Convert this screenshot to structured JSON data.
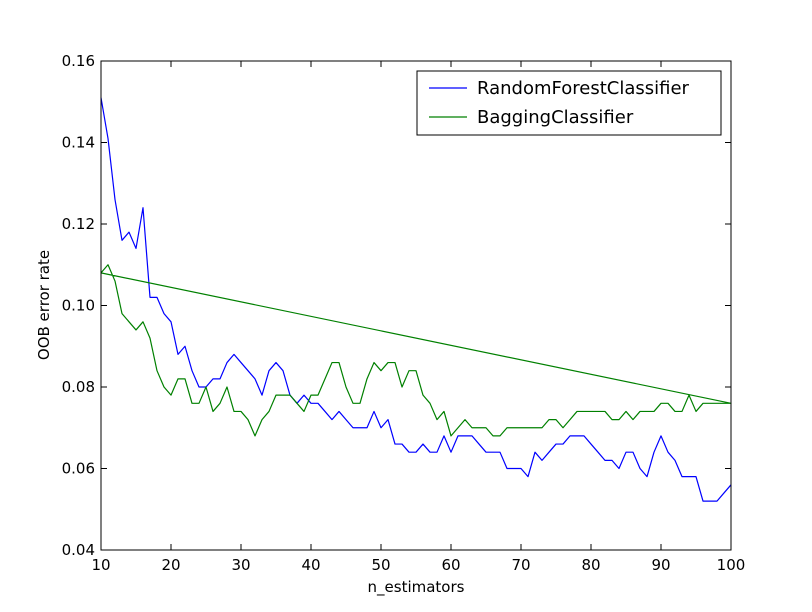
{
  "chart_data": {
    "type": "line",
    "title": "",
    "xlabel": "n_estimators",
    "ylabel": "OOB error rate",
    "xlim": [
      10,
      100
    ],
    "ylim": [
      0.04,
      0.16
    ],
    "xticks": [
      10,
      20,
      30,
      40,
      50,
      60,
      70,
      80,
      90,
      100
    ],
    "yticks": [
      0.04,
      0.06,
      0.08,
      0.1,
      0.12,
      0.14,
      0.16
    ],
    "xtick_labels": [
      "10",
      "20",
      "30",
      "40",
      "50",
      "60",
      "70",
      "80",
      "90",
      "100"
    ],
    "ytick_labels": [
      "0.04",
      "0.06",
      "0.08",
      "0.10",
      "0.12",
      "0.14",
      "0.16"
    ],
    "grid": false,
    "legend_position": "top-right",
    "series": [
      {
        "name": "RandomForestClassifier",
        "color": "#0000ff",
        "x": [
          10,
          11,
          12,
          13,
          14,
          15,
          16,
          17,
          18,
          19,
          20,
          21,
          22,
          23,
          24,
          25,
          26,
          27,
          28,
          29,
          30,
          31,
          32,
          33,
          34,
          35,
          36,
          37,
          38,
          39,
          40,
          41,
          42,
          43,
          44,
          45,
          46,
          47,
          48,
          49,
          50,
          51,
          52,
          53,
          54,
          55,
          56,
          57,
          58,
          59,
          60,
          61,
          62,
          63,
          64,
          65,
          66,
          67,
          68,
          69,
          70,
          71,
          72,
          73,
          74,
          75,
          76,
          77,
          78,
          79,
          80,
          81,
          82,
          83,
          84,
          85,
          86,
          87,
          88,
          89,
          90,
          91,
          92,
          93,
          94,
          95,
          96,
          97,
          98,
          99,
          100
        ],
        "y": [
          0.151,
          0.141,
          0.126,
          0.116,
          0.118,
          0.114,
          0.124,
          0.102,
          0.102,
          0.098,
          0.096,
          0.088,
          0.09,
          0.084,
          0.08,
          0.08,
          0.082,
          0.082,
          0.086,
          0.088,
          0.086,
          0.084,
          0.082,
          0.078,
          0.084,
          0.086,
          0.084,
          0.078,
          0.076,
          0.078,
          0.076,
          0.076,
          0.074,
          0.072,
          0.074,
          0.072,
          0.07,
          0.07,
          0.07,
          0.074,
          0.07,
          0.072,
          0.066,
          0.066,
          0.064,
          0.064,
          0.066,
          0.064,
          0.064,
          0.068,
          0.064,
          0.068,
          0.068,
          0.068,
          0.066,
          0.064,
          0.064,
          0.064,
          0.06,
          0.06,
          0.06,
          0.058,
          0.064,
          0.062,
          0.064,
          0.066,
          0.066,
          0.068,
          0.068,
          0.068,
          0.066,
          0.064,
          0.062,
          0.062,
          0.06,
          0.064,
          0.064,
          0.06,
          0.058,
          0.064,
          0.068,
          0.064,
          0.062,
          0.058,
          0.058,
          0.058,
          0.052,
          0.052,
          0.052,
          0.054,
          0.056
        ]
      },
      {
        "name": "BaggingClassifier",
        "color": "#008000",
        "x": [
          10,
          11,
          12,
          13,
          14,
          15,
          16,
          17,
          18,
          19,
          20,
          21,
          22,
          23,
          24,
          25,
          26,
          27,
          28,
          29,
          30,
          31,
          32,
          33,
          34,
          35,
          36,
          37,
          38,
          39,
          40,
          41,
          42,
          43,
          44,
          45,
          46,
          47,
          48,
          49,
          50,
          51,
          52,
          53,
          54,
          55,
          56,
          57,
          58,
          59,
          60,
          61,
          62,
          63,
          64,
          65,
          66,
          67,
          68,
          69,
          70,
          71,
          72,
          73,
          74,
          75,
          76,
          77,
          78,
          79,
          80,
          81,
          82,
          83,
          84,
          85,
          86,
          87,
          88,
          89,
          90,
          91,
          92,
          93,
          94,
          95,
          96,
          97,
          98,
          99,
          100,
          10
        ],
        "y": [
          0.108,
          0.11,
          0.106,
          0.098,
          0.096,
          0.094,
          0.096,
          0.092,
          0.084,
          0.08,
          0.078,
          0.082,
          0.082,
          0.076,
          0.076,
          0.08,
          0.074,
          0.076,
          0.08,
          0.074,
          0.074,
          0.072,
          0.068,
          0.072,
          0.074,
          0.078,
          0.078,
          0.078,
          0.076,
          0.074,
          0.078,
          0.078,
          0.082,
          0.086,
          0.086,
          0.08,
          0.076,
          0.076,
          0.082,
          0.086,
          0.084,
          0.086,
          0.086,
          0.08,
          0.084,
          0.084,
          0.078,
          0.076,
          0.072,
          0.074,
          0.068,
          0.07,
          0.072,
          0.07,
          0.07,
          0.07,
          0.068,
          0.068,
          0.07,
          0.07,
          0.07,
          0.07,
          0.07,
          0.07,
          0.072,
          0.072,
          0.07,
          0.072,
          0.074,
          0.074,
          0.074,
          0.074,
          0.074,
          0.072,
          0.072,
          0.074,
          0.072,
          0.074,
          0.074,
          0.074,
          0.076,
          0.076,
          0.074,
          0.074,
          0.078,
          0.074,
          0.076,
          0.076,
          0.076,
          0.076,
          0.076,
          0.108
        ]
      }
    ]
  }
}
